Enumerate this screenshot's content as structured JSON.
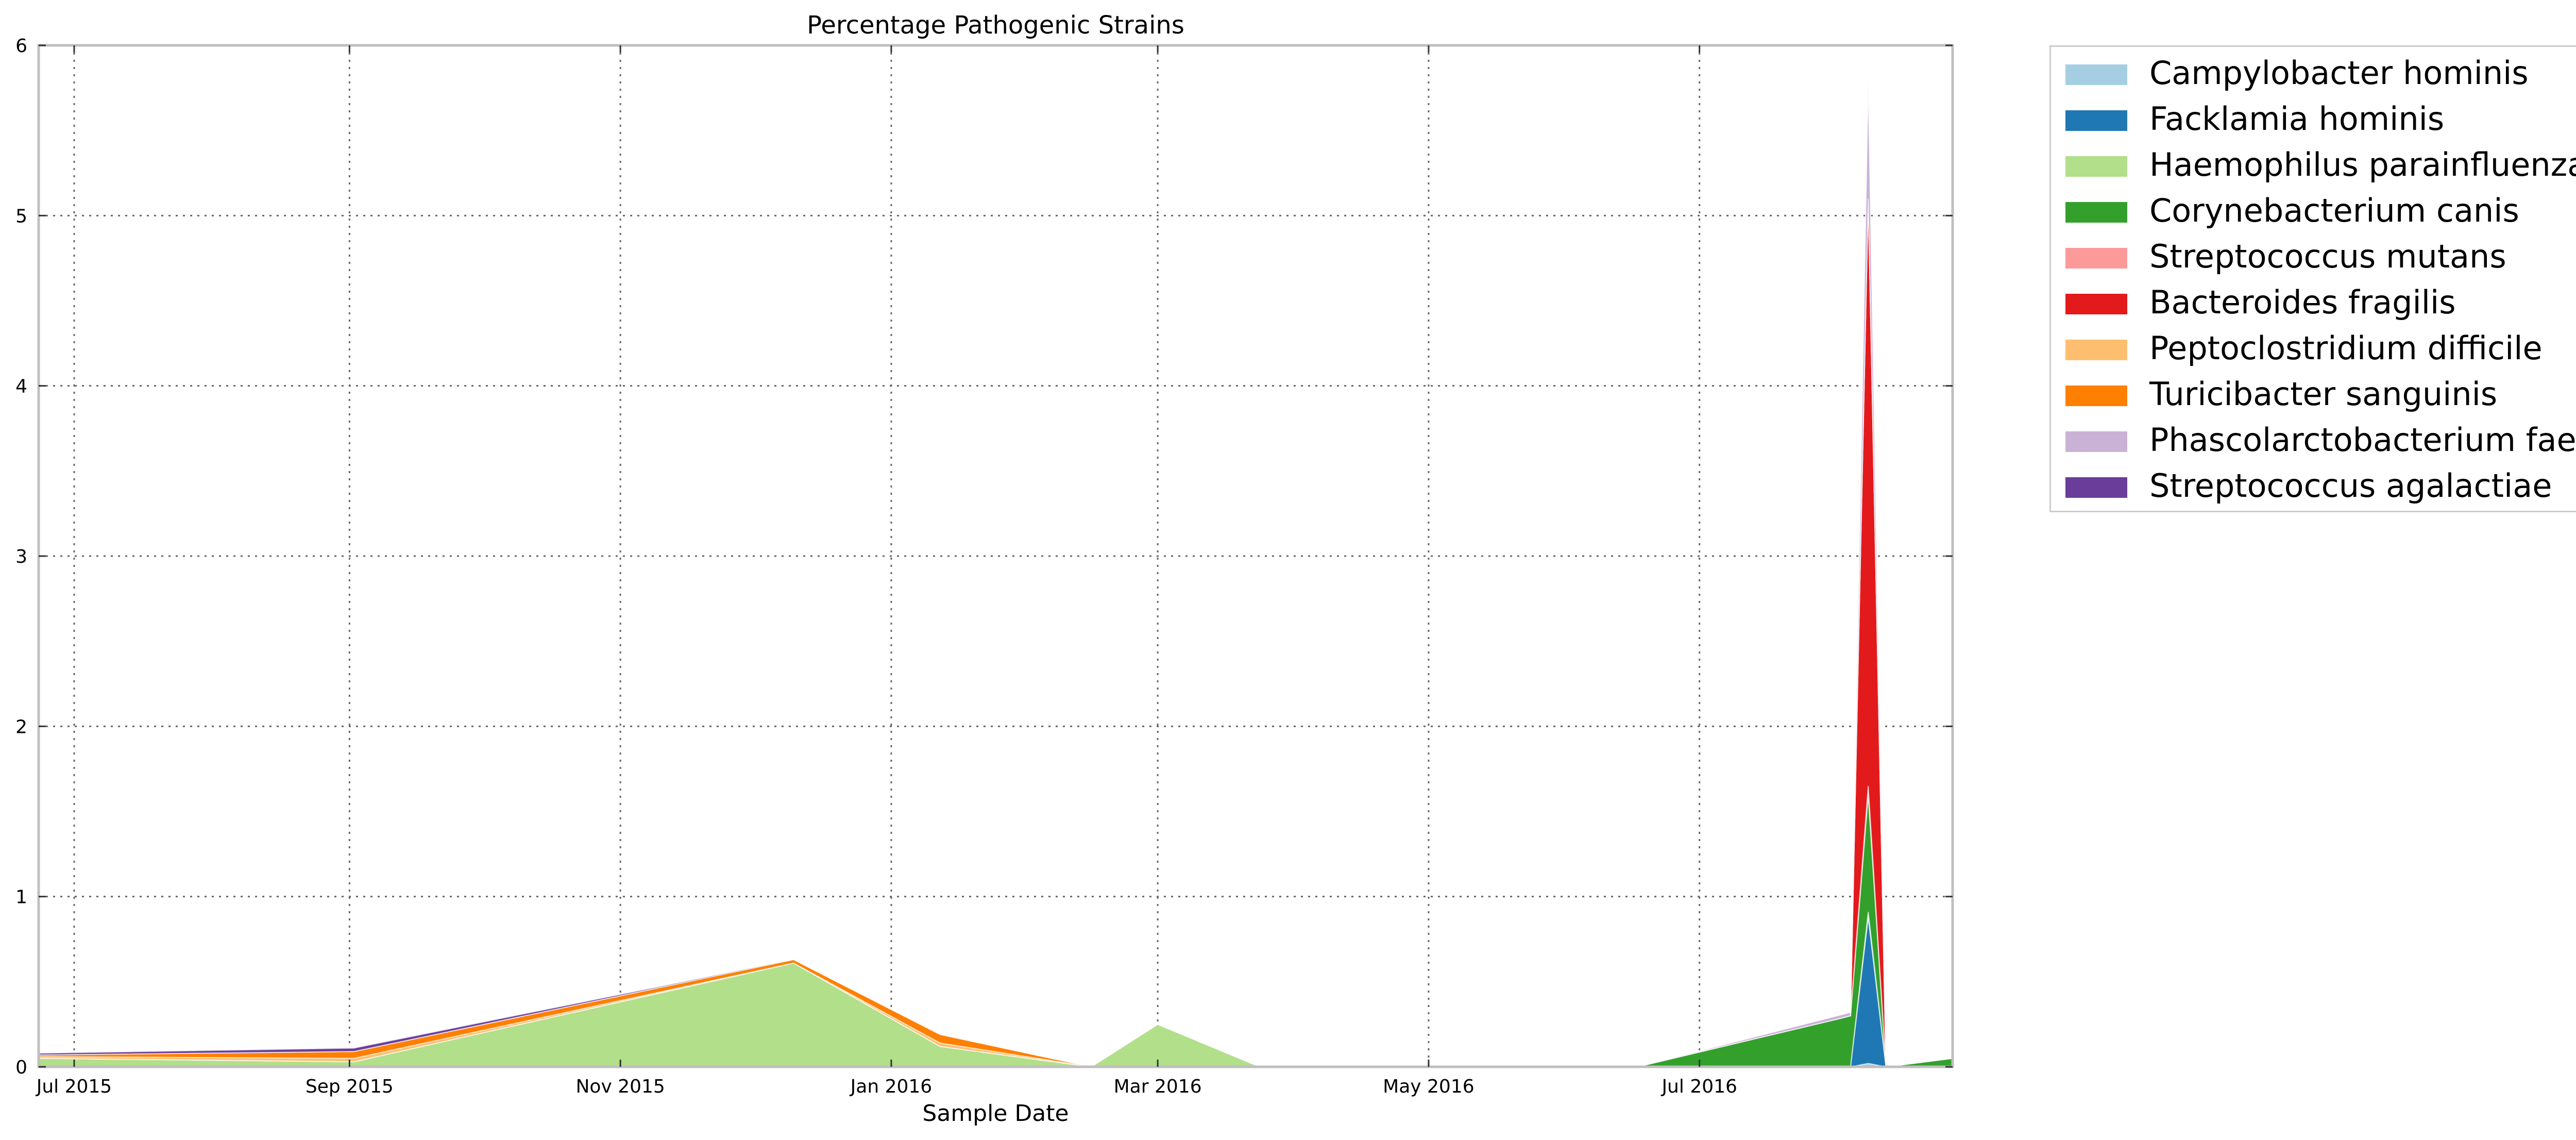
{
  "chart_data": {
    "type": "area",
    "stacked": true,
    "title": "Percentage Pathogenic Strains",
    "xlabel": "Sample Date",
    "ylabel": "",
    "ylim": [
      0,
      6
    ],
    "y_ticks": [
      "0",
      "1",
      "2",
      "3",
      "4",
      "5",
      "6"
    ],
    "x_ticks": [
      {
        "date": "2015-07-01",
        "label": "Jul 2015"
      },
      {
        "date": "2015-09-01",
        "label": "Sep 2015"
      },
      {
        "date": "2015-11-01",
        "label": "Nov 2015"
      },
      {
        "date": "2016-01-01",
        "label": "Jan 2016"
      },
      {
        "date": "2016-03-01",
        "label": "Mar 2016"
      },
      {
        "date": "2016-05-01",
        "label": "May 2016"
      },
      {
        "date": "2016-07-01",
        "label": "Jul 2016"
      }
    ],
    "xlim": [
      "2015-06-23",
      "2016-08-27"
    ],
    "grid": true,
    "legend_position": "outside-right",
    "x": [
      "2015-06-23",
      "2015-09-02",
      "2015-12-10",
      "2016-01-12",
      "2016-02-15",
      "2016-03-01",
      "2016-03-24",
      "2016-06-17",
      "2016-08-01",
      "2016-08-04",
      "2016-08-08",
      "2016-08-12",
      "2016-08-27"
    ],
    "series": [
      {
        "name": "Campylobacter hominis",
        "color": "#a6cee3",
        "values": [
          0,
          0,
          0,
          0,
          0,
          0,
          0,
          0,
          0,
          0,
          0.02,
          0,
          0
        ]
      },
      {
        "name": "Facklamia hominis",
        "color": "#1f78b4",
        "values": [
          0,
          0,
          0,
          0,
          0,
          0,
          0,
          0,
          0,
          0,
          0.86,
          0,
          0
        ]
      },
      {
        "name": "Haemophilus parainfluenzae",
        "color": "#b2df8a",
        "values": [
          0.05,
          0.03,
          0.61,
          0.12,
          0,
          0.25,
          0,
          0,
          0,
          0,
          0.03,
          0,
          0
        ]
      },
      {
        "name": "Corynebacterium canis",
        "color": "#33a02c",
        "values": [
          0,
          0,
          0,
          0,
          0,
          0,
          0,
          0,
          0.28,
          0.3,
          0.69,
          0,
          0.05
        ]
      },
      {
        "name": "Streptococcus mutans",
        "color": "#fb9a99",
        "values": [
          0,
          0,
          0,
          0,
          0,
          0,
          0,
          0,
          0,
          0,
          0.05,
          0,
          0
        ]
      },
      {
        "name": "Bacteroides fragilis",
        "color": "#e31a1c",
        "values": [
          0,
          0,
          0,
          0,
          0,
          0,
          0,
          0,
          0,
          0,
          3.45,
          0,
          0
        ]
      },
      {
        "name": "Peptoclostridium difficile",
        "color": "#fdbf6f",
        "values": [
          0.01,
          0.02,
          0,
          0.02,
          0,
          0,
          0,
          0,
          0,
          0,
          0,
          0,
          0
        ]
      },
      {
        "name": "Turicibacter sanguinis",
        "color": "#ff7f00",
        "values": [
          0.01,
          0.04,
          0.02,
          0.05,
          0,
          0,
          0,
          0,
          0,
          0,
          0,
          0,
          0
        ]
      },
      {
        "name": "Phascolarctobacterium faecium",
        "color": "#cab2d6",
        "values": [
          0,
          0,
          0,
          0,
          0,
          0,
          0,
          0,
          0.02,
          0.02,
          0.7,
          0,
          0
        ]
      },
      {
        "name": "Streptococcus agalactiae",
        "color": "#6a3d9a",
        "values": [
          0.01,
          0.02,
          0,
          0,
          0,
          0,
          0,
          0,
          0,
          0,
          0,
          0,
          0
        ]
      }
    ]
  }
}
